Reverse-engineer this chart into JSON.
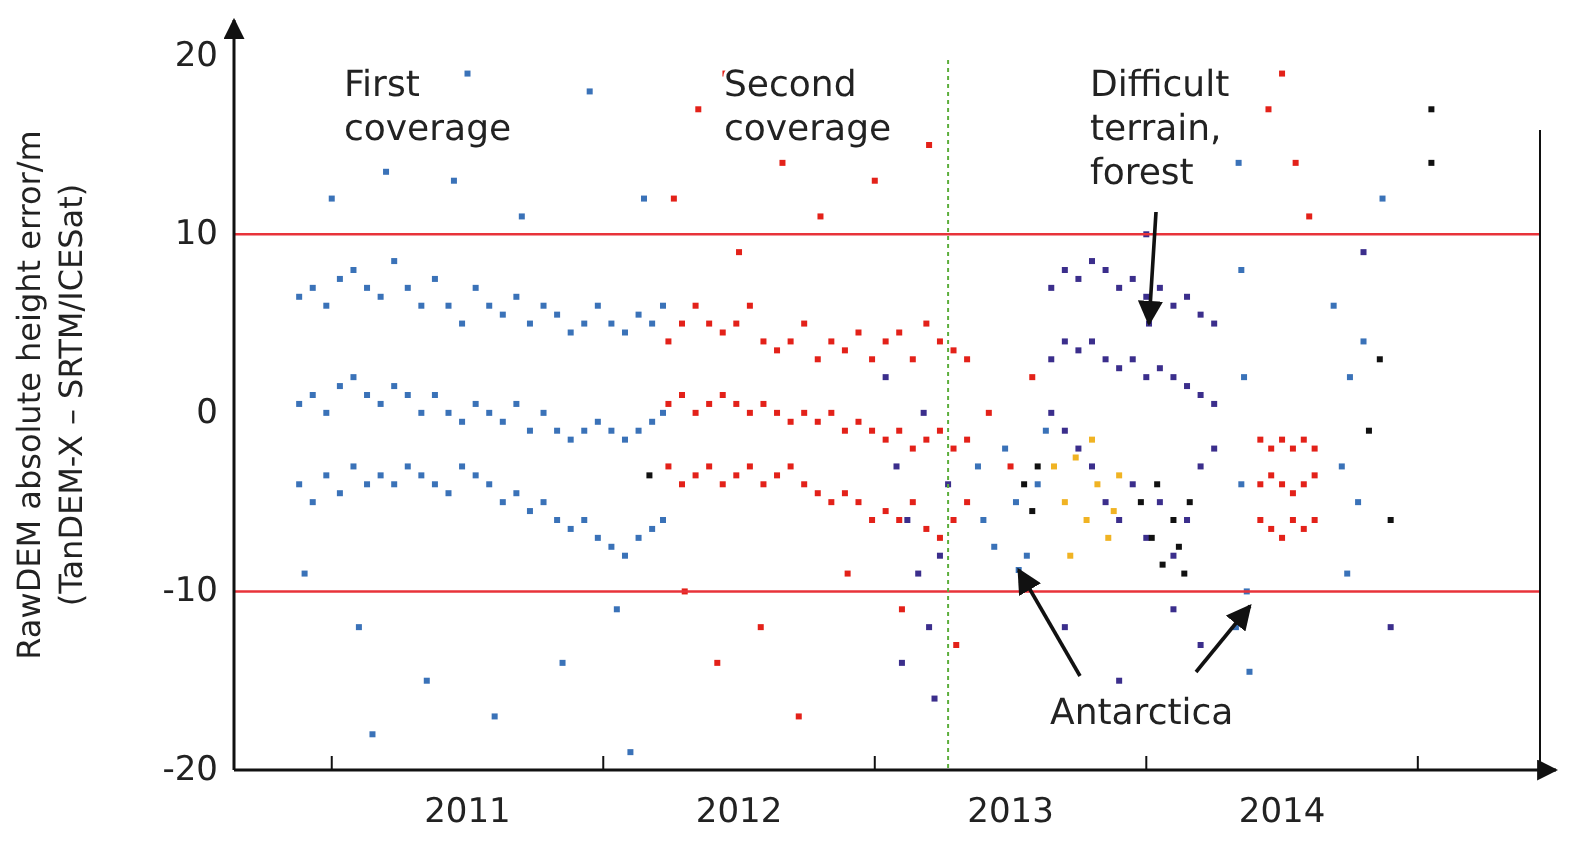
{
  "chart_data": {
    "type": "scatter",
    "ylabel": "RawDEM absolute height error/m (TanDEM-X – SRTM/ICESat)",
    "xlim": [
      2010.64,
      2015.45
    ],
    "ylim": [
      -20,
      22
    ],
    "xticks": [
      {
        "value": 2011,
        "label": null
      },
      {
        "value": 2012,
        "label": null
      },
      {
        "value": 2013,
        "label": null
      },
      {
        "value": 2014,
        "label": null
      },
      {
        "value": 2015,
        "label": null
      },
      {
        "value": 2011.5,
        "label": "2011"
      },
      {
        "value": 2012.5,
        "label": "2012"
      },
      {
        "value": 2013.5,
        "label": "2013"
      },
      {
        "value": 2014.5,
        "label": "2014"
      }
    ],
    "yticks": [
      -20,
      -10,
      0,
      10,
      20
    ],
    "ref_lines": [
      {
        "axis": "y",
        "value": 10,
        "color": "#e8333a"
      },
      {
        "axis": "y",
        "value": -10,
        "color": "#e8333a"
      },
      {
        "axis": "x",
        "value": 2013.27,
        "color": "#5cae3c",
        "line_style": "dotted"
      }
    ],
    "annotations": [
      "First coverage",
      "Second coverage",
      {
        "text": "Difficult terrain, forest",
        "x": 2014.01,
        "y": 5
      },
      {
        "text": "Antarctica",
        "x": 2013.53,
        "y": -8.8
      }
    ],
    "series": [
      {
        "color": "#3a72b8",
        "x": [
          2010.88,
          2010.93,
          2010.98,
          2011.03,
          2011.08,
          2011.13,
          2011.18,
          2011.23,
          2011.28,
          2011.33,
          2011.38,
          2011.43,
          2011.48,
          2011.53,
          2011.58,
          2011.63,
          2011.68,
          2011.73,
          2011.78,
          2011.83,
          2011.88,
          2011.93,
          2011.98,
          2012.03,
          2012.08,
          2012.13,
          2012.18,
          2012.22,
          2010.88,
          2010.93,
          2010.98,
          2011.03,
          2011.08,
          2011.13,
          2011.18,
          2011.23,
          2011.28,
          2011.33,
          2011.38,
          2011.43,
          2011.48,
          2011.53,
          2011.58,
          2011.63,
          2011.68,
          2011.73,
          2011.78,
          2011.83,
          2011.88,
          2011.93,
          2011.98,
          2012.03,
          2012.08,
          2012.13,
          2012.18,
          2012.22,
          2010.88,
          2010.93,
          2010.98,
          2011.03,
          2011.08,
          2011.13,
          2011.18,
          2011.23,
          2011.28,
          2011.33,
          2011.38,
          2011.43,
          2011.48,
          2011.53,
          2011.58,
          2011.63,
          2011.68,
          2011.73,
          2011.78,
          2011.83,
          2011.88,
          2011.93,
          2011.98,
          2012.03,
          2012.08,
          2012.13,
          2012.18,
          2012.22,
          2010.9,
          2011.0,
          2011.1,
          2011.2,
          2011.35,
          2011.45,
          2011.6,
          2011.7,
          2011.85,
          2011.95,
          2012.05,
          2012.15,
          2011.15,
          2011.5,
          2012.1,
          2013.38,
          2013.4,
          2013.44,
          2013.48,
          2013.52,
          2013.56,
          2013.6,
          2013.63,
          2014.34,
          2014.35,
          2014.36,
          2014.35,
          2014.37,
          2014.38,
          2014.33,
          2014.69,
          2014.72,
          2014.75,
          2014.78,
          2014.8,
          2014.74,
          2014.87,
          2013.53
        ],
        "values": [
          6.5,
          7,
          6,
          7.5,
          8,
          7,
          6.5,
          8.5,
          7,
          6,
          7.5,
          6,
          5,
          7,
          6,
          5.5,
          6.5,
          5,
          6,
          5.5,
          4.5,
          5,
          6,
          5,
          4.5,
          5.5,
          5,
          6,
          0.5,
          1,
          0,
          1.5,
          2,
          1,
          0.5,
          1.5,
          1,
          0,
          1,
          0,
          -0.5,
          0.5,
          0,
          -0.5,
          0.5,
          -1,
          0,
          -1,
          -1.5,
          -1,
          -0.5,
          -1,
          -1.5,
          -1,
          -0.5,
          0,
          -4,
          -5,
          -3.5,
          -4.5,
          -3,
          -4,
          -3.5,
          -4,
          -3,
          -3.5,
          -4,
          -4.5,
          -3,
          -3.5,
          -4,
          -5,
          -4.5,
          -5.5,
          -5,
          -6,
          -6.5,
          -6,
          -7,
          -7.5,
          -8,
          -7,
          -6.5,
          -6,
          -9,
          12,
          -12,
          13.5,
          -15,
          13,
          -17,
          11,
          -14,
          18,
          -11,
          12,
          -18,
          19,
          -19,
          -3,
          -6,
          -7.5,
          -2,
          -5,
          -8,
          -4,
          -1,
          14,
          8,
          2,
          -4,
          -10,
          -14.5,
          -12,
          6,
          -3,
          2,
          -5,
          4,
          -9,
          12,
          -8.8
        ]
      },
      {
        "color": "#e32119",
        "x": [
          2012.24,
          2012.29,
          2012.34,
          2012.39,
          2012.44,
          2012.49,
          2012.54,
          2012.59,
          2012.64,
          2012.69,
          2012.74,
          2012.79,
          2012.84,
          2012.89,
          2012.94,
          2012.99,
          2013.04,
          2013.09,
          2013.14,
          2013.19,
          2013.24,
          2013.29,
          2013.34,
          2012.24,
          2012.29,
          2012.34,
          2012.39,
          2012.44,
          2012.49,
          2012.54,
          2012.59,
          2012.64,
          2012.69,
          2012.74,
          2012.79,
          2012.84,
          2012.89,
          2012.94,
          2012.99,
          2013.04,
          2013.09,
          2013.14,
          2013.19,
          2013.24,
          2013.29,
          2013.34,
          2012.24,
          2012.29,
          2012.34,
          2012.39,
          2012.44,
          2012.49,
          2012.54,
          2012.59,
          2012.64,
          2012.69,
          2012.74,
          2012.79,
          2012.84,
          2012.89,
          2012.94,
          2012.99,
          2013.04,
          2013.09,
          2013.14,
          2013.19,
          2013.24,
          2013.29,
          2013.34,
          2012.26,
          2012.3,
          2012.35,
          2012.42,
          2012.5,
          2012.58,
          2012.66,
          2012.72,
          2012.8,
          2012.9,
          2013.0,
          2013.1,
          2013.2,
          2013.3,
          2012.45,
          2014.42,
          2014.46,
          2014.5,
          2014.54,
          2014.58,
          2014.62,
          2014.42,
          2014.46,
          2014.5,
          2014.54,
          2014.58,
          2014.62,
          2014.42,
          2014.46,
          2014.5,
          2014.54,
          2014.58,
          2014.62,
          2014.45,
          2014.5,
          2014.55,
          2014.6,
          2013.42,
          2013.5,
          2013.58
        ],
        "values": [
          4,
          5,
          6,
          5,
          4.5,
          5,
          6,
          4,
          3.5,
          4,
          5,
          3,
          4,
          3.5,
          4.5,
          3,
          4,
          4.5,
          3,
          5,
          4,
          3.5,
          3,
          0.5,
          1,
          0,
          0.5,
          1,
          0.5,
          0,
          0.5,
          0,
          -0.5,
          0,
          -0.5,
          0,
          -1,
          -0.5,
          -1,
          -1.5,
          -1,
          -2,
          -1.5,
          -1,
          -2,
          -1.5,
          -3,
          -4,
          -3.5,
          -3,
          -4,
          -3.5,
          -3,
          -4,
          -3.5,
          -3,
          -4,
          -4.5,
          -5,
          -4.5,
          -5,
          -6,
          -5.5,
          -6,
          -5,
          -6.5,
          -7,
          -6,
          -5,
          12,
          -10,
          17,
          -14,
          9,
          -12,
          14,
          -17,
          11,
          -9,
          13,
          -11,
          15,
          -13,
          19,
          -1.5,
          -2,
          -1.5,
          -2,
          -1.5,
          -2,
          -4,
          -3.5,
          -4,
          -4.5,
          -4,
          -3.5,
          -6,
          -6.5,
          -7,
          -6,
          -6.5,
          -6,
          17,
          19,
          14,
          11,
          0,
          -3,
          2
        ]
      },
      {
        "color": "#3b2e8c",
        "x": [
          2013.04,
          2013.08,
          2013.12,
          2013.16,
          2013.2,
          2013.24,
          2013.27,
          2013.1,
          2013.18,
          2013.22,
          2013.65,
          2013.7,
          2013.75,
          2013.8,
          2013.85,
          2013.9,
          2013.95,
          2014.0,
          2014.05,
          2014.1,
          2014.15,
          2014.2,
          2014.25,
          2013.65,
          2013.7,
          2013.75,
          2013.8,
          2013.85,
          2013.9,
          2013.95,
          2014.0,
          2014.05,
          2014.1,
          2014.15,
          2014.2,
          2014.25,
          2013.65,
          2013.7,
          2013.75,
          2013.8,
          2013.85,
          2013.9,
          2013.95,
          2014.0,
          2014.05,
          2014.1,
          2014.15,
          2014.2,
          2014.25,
          2013.7,
          2013.9,
          2014.1,
          2014.0,
          2014.2,
          2014.8,
          2014.9,
          2014.01
        ],
        "values": [
          2,
          -3,
          -6,
          -9,
          -12,
          -8,
          -4,
          -14,
          0,
          -16,
          7,
          8,
          7.5,
          8.5,
          8,
          7,
          7.5,
          6.5,
          7,
          6,
          6.5,
          5.5,
          5,
          3,
          4,
          3.5,
          4,
          3,
          2.5,
          3,
          2,
          2.5,
          2,
          1.5,
          1,
          0.5,
          0,
          -1,
          -2,
          -3,
          -5,
          -6,
          -4,
          -7,
          -5,
          -8,
          -6,
          -3,
          -2,
          -12,
          -15,
          -11,
          10,
          -13,
          9,
          -12,
          5
        ]
      },
      {
        "color": "#111111",
        "x": [
          2013.55,
          2013.58,
          2013.6,
          2013.98,
          2014.02,
          2014.06,
          2014.1,
          2014.14,
          2014.04,
          2014.12,
          2014.16,
          2014.82,
          2014.86,
          2014.9,
          2015.05,
          2015.05,
          2012.17
        ],
        "values": [
          -4,
          -5.5,
          -3,
          -5,
          -7,
          -8.5,
          -6,
          -9,
          -4,
          -7.5,
          -5,
          -1,
          3,
          -6,
          14,
          17,
          -3.5
        ]
      },
      {
        "color": "#f0b323",
        "x": [
          2013.66,
          2013.7,
          2013.74,
          2013.78,
          2013.82,
          2013.86,
          2013.9,
          2013.72,
          2013.8,
          2013.88
        ],
        "values": [
          -3,
          -5,
          -2.5,
          -6,
          -4,
          -7,
          -3.5,
          -8,
          -1.5,
          -5.5
        ]
      }
    ]
  }
}
